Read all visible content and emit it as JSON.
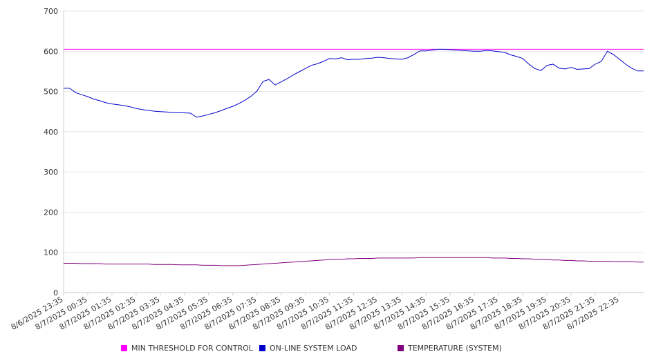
{
  "chart_data": {
    "type": "line",
    "title": "",
    "xlabel": "",
    "ylabel": "",
    "ylim": [
      0,
      700
    ],
    "yticks": [
      0,
      100,
      200,
      300,
      400,
      500,
      600,
      700
    ],
    "grid": true,
    "legend_position": "bottom",
    "x_tick_labels": [
      "8/6/2025 23:35",
      "8/7/2025 00:35",
      "8/7/2025 01:35",
      "8/7/2025 02:35",
      "8/7/2025 03:35",
      "8/7/2025 04:35",
      "8/7/2025 05:35",
      "8/7/2025 06:35",
      "8/7/2025 07:35",
      "8/7/2025 08:35",
      "8/7/2025 09:35",
      "8/7/2025 10:35",
      "8/7/2025 11:35",
      "8/7/2025 12:35",
      "8/7/2025 13:35",
      "8/7/2025 14:35",
      "8/7/2025 15:35",
      "8/7/2025 16:35",
      "8/7/2025 17:35",
      "8/7/2025 18:35",
      "8/7/2025 19:35",
      "8/7/2025 20:35",
      "8/7/2025 21:35",
      "8/7/2025 22:35"
    ],
    "x_hours": [
      0.0,
      0.25,
      0.5,
      0.75,
      1.0,
      1.25,
      1.5,
      1.75,
      2.0,
      2.25,
      2.5,
      2.75,
      3.0,
      3.25,
      3.5,
      3.75,
      4.0,
      4.25,
      4.5,
      4.75,
      5.0,
      5.25,
      5.5,
      5.75,
      6.0,
      6.25,
      6.5,
      6.75,
      7.0,
      7.25,
      7.5,
      7.75,
      8.0,
      8.25,
      8.5,
      8.75,
      9.0,
      9.25,
      9.5,
      9.75,
      10.0,
      10.25,
      10.5,
      10.75,
      11.0,
      11.25,
      11.5,
      11.75,
      12.0,
      12.25,
      12.5,
      12.75,
      13.0,
      13.25,
      13.5,
      13.75,
      14.0,
      14.25,
      14.5,
      14.75,
      15.0,
      15.25,
      15.5,
      15.75,
      16.0,
      16.25,
      16.5,
      16.75,
      17.0,
      17.25,
      17.5,
      17.75,
      18.0,
      18.25,
      18.5,
      18.75,
      19.0,
      19.25,
      19.5,
      19.75,
      20.0,
      20.25,
      20.5,
      20.75,
      21.0,
      21.25,
      21.5,
      21.75,
      22.0,
      22.25,
      22.5,
      22.75,
      23.0,
      23.25,
      23.5,
      23.75
    ],
    "series": [
      {
        "name": "MIN THRESHOLD FOR CONTROL",
        "color": "#ff00ff",
        "values": [
          605,
          605
        ]
      },
      {
        "name": "ON-LINE SYSTEM LOAD",
        "color": "#0000cc",
        "values": [
          508,
          508,
          497,
          492,
          487,
          481,
          477,
          472,
          469,
          467,
          465,
          462,
          458,
          455,
          453,
          451,
          450,
          449,
          448,
          447,
          447,
          446,
          436,
          439,
          443,
          447,
          452,
          458,
          463,
          470,
          478,
          488,
          501,
          525,
          530,
          516,
          524,
          532,
          541,
          549,
          557,
          565,
          569,
          575,
          582,
          581,
          584,
          579,
          580,
          580,
          582,
          583,
          585,
          584,
          582,
          581,
          580,
          584,
          592,
          601,
          601,
          603,
          605,
          605,
          604,
          603,
          602,
          601,
          600,
          600,
          602,
          601,
          599,
          597,
          591,
          587,
          582,
          568,
          557,
          552,
          565,
          568,
          558,
          556,
          560,
          555,
          556,
          557,
          568,
          575,
          600,
          592,
          580,
          568,
          558,
          551
        ]
      },
      {
        "name": "TEMPERATURE (SYSTEM)",
        "color": "#800080",
        "values": [
          73,
          73,
          73,
          72,
          72,
          72,
          72,
          71,
          71,
          71,
          71,
          71,
          71,
          71,
          71,
          70,
          70,
          70,
          70,
          69,
          69,
          69,
          69,
          68,
          68,
          68,
          67,
          67,
          67,
          67,
          68,
          69,
          70,
          71,
          72,
          73,
          74,
          75,
          76,
          77,
          78,
          79,
          80,
          81,
          82,
          83,
          83,
          84,
          84,
          85,
          85,
          85,
          86,
          86,
          86,
          86,
          86,
          86,
          86,
          87,
          87,
          87,
          87,
          87,
          87,
          87,
          87,
          87,
          87,
          87,
          87,
          86,
          86,
          86,
          85,
          85,
          84,
          84,
          83,
          83,
          82,
          81,
          81,
          80,
          80,
          79,
          79,
          78,
          78,
          78,
          78,
          77,
          77,
          77,
          77,
          76
        ]
      }
    ]
  }
}
